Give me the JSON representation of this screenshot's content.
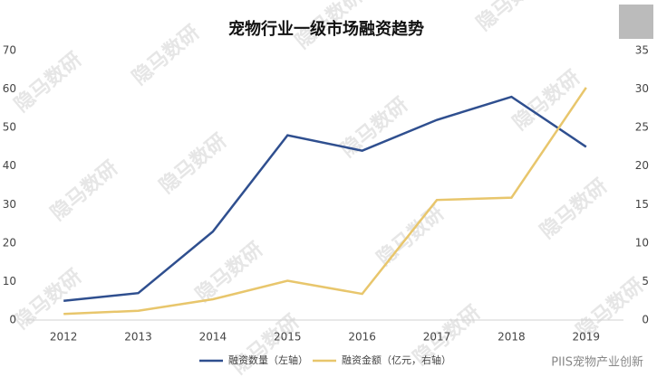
{
  "chart_data": {
    "type": "line",
    "title": "宠物行业一级市场融资趋势",
    "watermark": "隐马数研",
    "footer": "PIIS宠物产业创新",
    "categories": [
      "2012",
      "2013",
      "2014",
      "2015",
      "2016",
      "2017",
      "2018",
      "2019"
    ],
    "series": [
      {
        "name": "融资数量（左轴）",
        "color": "#2f4f8f",
        "values": [
          5,
          7,
          23,
          48,
          44,
          52,
          58,
          45
        ]
      },
      {
        "name": "融资金额（亿元，右轴）",
        "color": "#e8c66c",
        "axis": "y2",
        "values": [
          0.8,
          1.2,
          2.7,
          5.1,
          3.4,
          15.6,
          15.9,
          30.2
        ]
      }
    ],
    "ylim": [
      0,
      70
    ],
    "yticks": [
      0,
      10,
      20,
      30,
      40,
      50,
      60,
      70
    ],
    "y2lim": [
      0,
      35
    ],
    "y2ticks": [
      0,
      5,
      10,
      15,
      20,
      25,
      30,
      35
    ],
    "legend": "bottom"
  }
}
